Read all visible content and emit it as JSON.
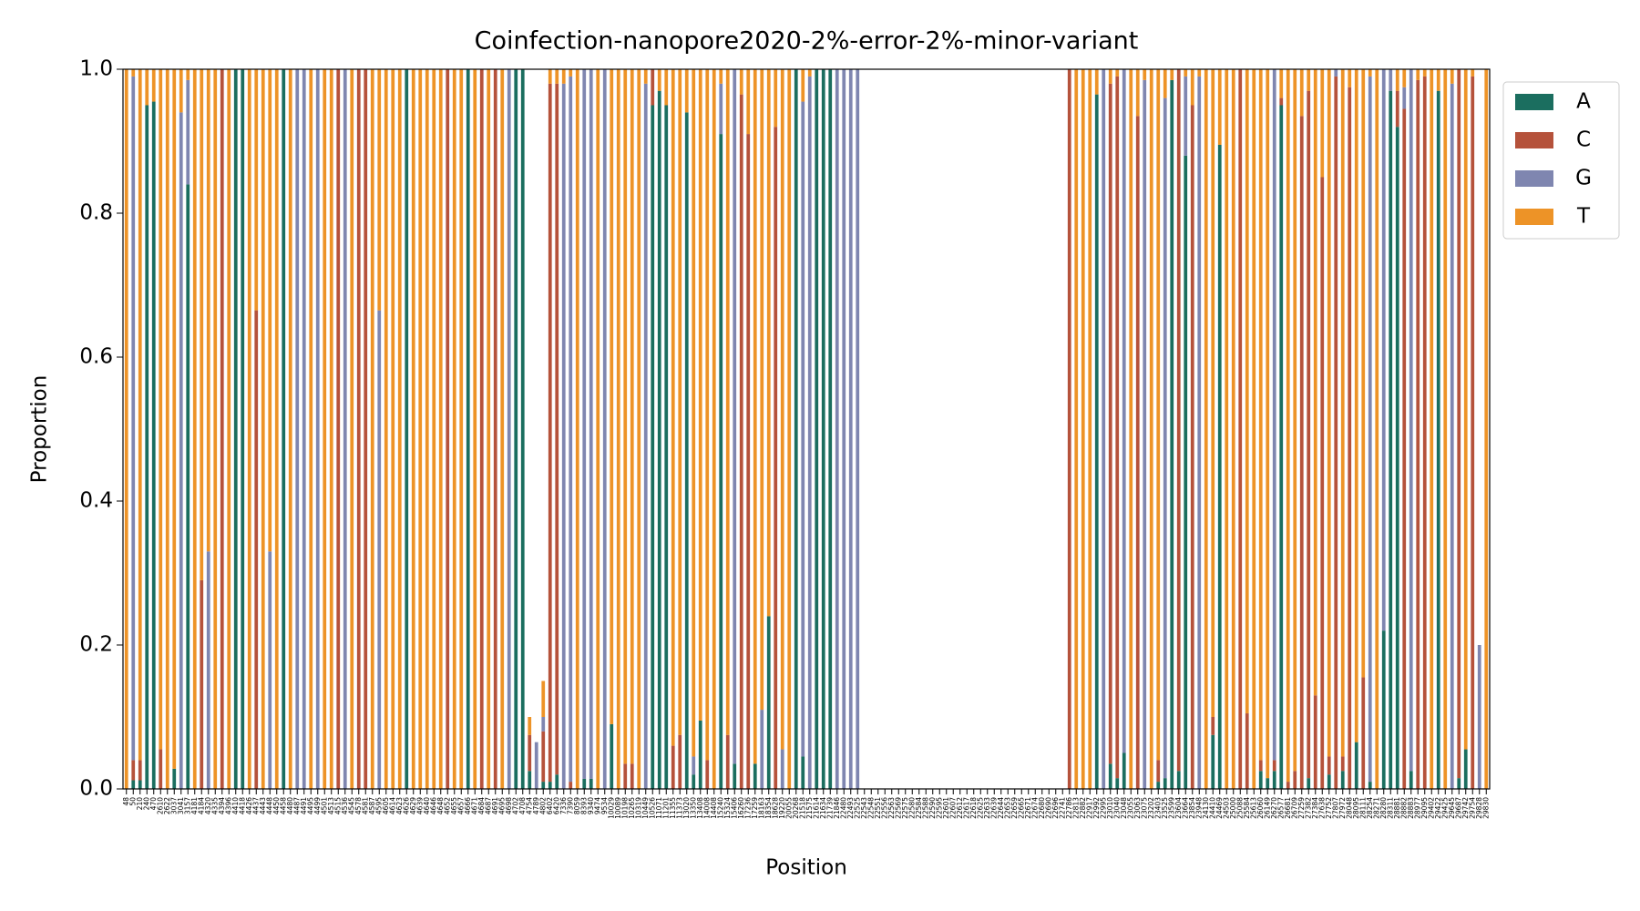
{
  "chart_data": {
    "type": "stacked_bar",
    "title": "Coinfection-nanopore2020-2%-error-2%-minor-variant",
    "x_label": "Position",
    "y_label": "Proportion",
    "ylim": [
      0,
      1
    ],
    "yticks": [
      {
        "value": 0,
        "label": "0.0"
      },
      0.2,
      0.4,
      0.6,
      0.8,
      {
        "value": 1,
        "label": "1.0"
      }
    ],
    "legend_position": "outside-upper-right",
    "categories": [
      "48",
      "50",
      "210",
      "240",
      "470",
      "2610",
      "2622",
      "3037",
      "3041",
      "3157",
      "4181",
      "4184",
      "4320",
      "4335",
      "4394",
      "4396",
      "4410",
      "4418",
      "4426",
      "4437",
      "4443",
      "4448",
      "4450",
      "4458",
      "4480",
      "4487",
      "4491",
      "4495",
      "4499",
      "4501",
      "4513",
      "4515",
      "4536",
      "4545",
      "4578",
      "4581",
      "4587",
      "4595",
      "4605",
      "4614",
      "4623",
      "4626",
      "4629",
      "4639",
      "4640",
      "4646",
      "4648",
      "4652",
      "4655",
      "4657",
      "4666",
      "4671",
      "4684",
      "4687",
      "4691",
      "4695",
      "4698",
      "4702",
      "4708",
      "4754",
      "4789",
      "4802",
      "6402",
      "6420",
      "7336",
      "7390",
      "8059",
      "8393",
      "9340",
      "9474",
      "9534",
      "10029",
      "10089",
      "10198",
      "10265",
      "10319",
      "10449",
      "10526",
      "11071",
      "11201",
      "11355",
      "11373",
      "13020",
      "13350",
      "13408",
      "14008",
      "14408",
      "15240",
      "15324",
      "15406",
      "16260",
      "17236",
      "17259",
      "18163",
      "18354",
      "18628",
      "19220",
      "20055",
      "20268",
      "21518",
      "21575",
      "21614",
      "21634",
      "21739",
      "21846",
      "22480",
      "22493",
      "22525",
      "22543",
      "22548",
      "22551",
      "22556",
      "22563",
      "22569",
      "22575",
      "22580",
      "22584",
      "22588",
      "22590",
      "22595",
      "22601",
      "22607",
      "22612",
      "22617",
      "22618",
      "22625",
      "22633",
      "22639",
      "22644",
      "22653",
      "22659",
      "22665",
      "22671",
      "22674",
      "22680",
      "22690",
      "22696",
      "22741",
      "22786",
      "22813",
      "22882",
      "22917",
      "22992",
      "22995",
      "23010",
      "23040",
      "23048",
      "23055",
      "23063",
      "23075",
      "23202",
      "23403",
      "23525",
      "23599",
      "23604",
      "23664",
      "23854",
      "23948",
      "24130",
      "24410",
      "24469",
      "24503",
      "25000",
      "25088",
      "25584",
      "25613",
      "26060",
      "26149",
      "26270",
      "26577",
      "26681",
      "26709",
      "27259",
      "27382",
      "27384",
      "27638",
      "27752",
      "27807",
      "27972",
      "28048",
      "28095",
      "28111",
      "28254",
      "28271",
      "28280",
      "28311",
      "28881",
      "28882",
      "28883",
      "28977",
      "29095",
      "29402",
      "29422",
      "29425",
      "29645",
      "29687",
      "29742",
      "29754",
      "29828",
      "29830"
    ],
    "series": [
      {
        "name": "A",
        "color": "#1b6e5f",
        "values": [
          0,
          0.012,
          0.012,
          0.95,
          0.955,
          0,
          0,
          0.028,
          0,
          0.84,
          0,
          0,
          0,
          0,
          0,
          0,
          1,
          1,
          0,
          0,
          0,
          0,
          0,
          1,
          0,
          0,
          0,
          0,
          0,
          0,
          0,
          0,
          0,
          0,
          0,
          0,
          0,
          0,
          0,
          0,
          0,
          1,
          0,
          0,
          0,
          0,
          0,
          0,
          0,
          0,
          1,
          0,
          0,
          0,
          0,
          0,
          0,
          1,
          1,
          0.025,
          0,
          0.01,
          0.01,
          0.02,
          0,
          0,
          0,
          0.014,
          0.014,
          0,
          0,
          0.09,
          0,
          0,
          0,
          0,
          0,
          0.95,
          0.97,
          0.95,
          0,
          0,
          0.94,
          0.02,
          0.095,
          0,
          0,
          0.91,
          0,
          0.035,
          0,
          0,
          0.035,
          0,
          0.24,
          0,
          0,
          0,
          1,
          0.045,
          0,
          1,
          1,
          1,
          0,
          0,
          0,
          0,
          0,
          0,
          0,
          0,
          0,
          0,
          0,
          0,
          0,
          0,
          0,
          0,
          0,
          0,
          0,
          0,
          0,
          0,
          0,
          0,
          0,
          0,
          0,
          0,
          0,
          0,
          0,
          0,
          0,
          0,
          0,
          0,
          0,
          0,
          0.965,
          0,
          0.035,
          0.015,
          0.05,
          0,
          0,
          0,
          0,
          0.01,
          0.015,
          0.985,
          0.025,
          0.88,
          0,
          0,
          0,
          0.075,
          0.895,
          0,
          0,
          0,
          0,
          0,
          0.025,
          0.015,
          0.025,
          0.95,
          0,
          0,
          0,
          0.015,
          0,
          0,
          0.02,
          0,
          0.025,
          0,
          0.065,
          0,
          0.01,
          0,
          0.22,
          0.97,
          0.92,
          0,
          0.025,
          0,
          0,
          0,
          0.97,
          0,
          0,
          0.015,
          0.055,
          0,
          0,
          0
        ]
      },
      {
        "name": "C",
        "color": "#b5523b",
        "values": [
          0,
          0.028,
          0.028,
          0,
          0,
          0.055,
          0,
          0,
          0,
          0,
          0,
          0.29,
          0,
          0,
          1,
          0,
          0,
          0,
          0,
          0.665,
          0,
          0,
          0,
          0,
          0,
          0,
          0,
          0,
          0,
          0,
          0,
          1,
          0,
          0,
          1,
          1,
          0,
          0,
          0,
          0,
          0,
          0,
          0,
          0,
          0,
          0,
          0,
          1,
          0,
          0,
          0,
          0,
          1,
          0,
          1,
          0,
          0,
          0,
          0,
          0.05,
          0,
          0.07,
          0.97,
          0.96,
          0,
          0.01,
          0,
          0,
          0,
          0,
          0,
          0,
          0,
          0.035,
          0.035,
          0,
          0,
          0.05,
          0,
          0,
          0.06,
          0.075,
          0,
          0,
          0,
          0.04,
          0,
          0,
          0.075,
          0,
          0.965,
          0.91,
          0,
          0,
          0,
          0.92,
          0,
          0,
          0,
          0,
          0,
          0,
          0,
          0,
          0,
          0,
          0,
          0,
          0,
          0,
          0,
          0,
          0,
          0,
          0,
          0,
          0,
          0,
          0,
          0,
          0,
          0,
          0,
          0,
          0,
          0,
          0,
          0,
          0,
          0,
          0,
          0,
          0,
          0,
          0,
          0,
          0,
          0,
          1,
          0,
          0,
          0,
          0,
          0,
          0.945,
          0.975,
          0,
          0,
          0.935,
          0,
          0,
          0.03,
          0,
          0,
          0.975,
          0,
          0.95,
          0,
          0,
          0.025,
          0,
          0,
          0,
          1,
          0.105,
          0,
          0.015,
          0,
          0.015,
          0.01,
          0.01,
          0.025,
          0.935,
          0.955,
          0.13,
          0.85,
          0.025,
          0.99,
          0.02,
          0.975,
          0,
          0.155,
          0,
          0,
          0,
          0,
          0.05,
          0.945,
          0,
          0.985,
          0.99,
          0,
          0,
          0,
          0,
          0.985,
          0,
          0.99,
          0,
          0
        ]
      },
      {
        "name": "G",
        "color": "#7f86b0",
        "values": [
          0,
          0.95,
          0,
          0,
          0,
          0,
          0,
          0,
          0.94,
          0.145,
          0,
          0,
          0.33,
          0,
          0,
          0,
          0,
          0,
          0,
          0,
          0,
          0.33,
          0,
          0,
          0,
          1,
          1,
          0,
          1,
          0,
          0,
          0,
          1,
          0,
          0,
          0,
          0,
          0.665,
          0,
          0,
          0,
          0,
          0,
          0,
          0,
          0,
          0,
          0,
          0,
          0,
          0,
          0,
          0,
          0,
          0,
          0,
          1,
          0,
          0,
          0,
          0.065,
          0.02,
          0,
          0,
          0.98,
          0.98,
          0,
          0.986,
          0.986,
          0,
          1,
          0,
          0,
          0,
          0,
          0,
          0.98,
          0,
          0,
          0,
          0,
          0,
          0,
          0.025,
          0,
          0,
          0,
          0.07,
          0,
          0.965,
          0,
          0,
          0,
          0.11,
          0,
          0,
          0.055,
          0,
          0,
          0.91,
          0.99,
          0,
          0,
          0,
          1,
          1,
          1,
          1,
          0,
          0,
          0,
          0,
          0,
          0,
          0,
          0,
          0,
          0,
          0,
          0,
          0,
          0,
          0,
          0,
          0,
          0,
          0,
          0,
          0,
          0,
          0,
          0,
          0,
          0,
          0,
          0,
          0,
          0,
          0,
          0,
          0,
          0,
          0,
          1,
          0,
          0,
          0.95,
          0,
          0,
          0.985,
          0,
          0,
          0.945,
          0,
          0,
          0.11,
          0,
          0.99,
          0,
          0,
          0,
          0,
          0,
          0,
          0,
          0,
          0,
          0,
          0.96,
          0,
          0,
          0,
          0,
          0,
          0,
          0,
          0,
          0.01,
          0,
          0,
          0,
          0,
          0.98,
          0,
          0.78,
          0.03,
          0,
          0.03,
          0.975,
          0,
          0,
          0,
          0,
          0,
          0.98,
          0,
          0,
          0,
          0.2,
          0
        ]
      },
      {
        "name": "T",
        "color": "#ed9327",
        "values": [
          1,
          0.01,
          0.96,
          0.05,
          0.045,
          0.945,
          1,
          0.972,
          0.06,
          0.015,
          1,
          0.71,
          0.67,
          1,
          0,
          1,
          0,
          0,
          1,
          0.335,
          1,
          0.67,
          1,
          0,
          1,
          0,
          0,
          1,
          0,
          1,
          1,
          0,
          0,
          1,
          0,
          0,
          1,
          0.335,
          1,
          1,
          1,
          0,
          1,
          1,
          1,
          1,
          1,
          0,
          1,
          1,
          0,
          1,
          0,
          1,
          0,
          1,
          0,
          0,
          0,
          0.025,
          0,
          0.05,
          0.02,
          0.02,
          0.02,
          0.01,
          1,
          0,
          0,
          1,
          0,
          0.91,
          1,
          0.965,
          0.965,
          1,
          0.02,
          0,
          0.03,
          0.05,
          0.94,
          0.925,
          0.06,
          0.955,
          0.905,
          0.96,
          1,
          0.02,
          0.925,
          0,
          0.035,
          0.09,
          0.965,
          0.89,
          0.76,
          0.08,
          0.945,
          1,
          0,
          0.045,
          0.01,
          0,
          0,
          0,
          0,
          0,
          0,
          0,
          0,
          0,
          0,
          0,
          0,
          0,
          0,
          0,
          0,
          0,
          0,
          0,
          0,
          0,
          0,
          0,
          0,
          0,
          0,
          0,
          0,
          0,
          0,
          0,
          0,
          0,
          0,
          0,
          0,
          0,
          0,
          1,
          1,
          1,
          0.035,
          0,
          0.02,
          0.01,
          0,
          1,
          0.065,
          0.015,
          1,
          0.96,
          0.04,
          0.015,
          0,
          0.01,
          0.05,
          0.01,
          1,
          0.9,
          0.105,
          1,
          1,
          0,
          0.895,
          1,
          0.96,
          0.985,
          0,
          0.04,
          0.99,
          0.975,
          0.065,
          0.03,
          0.87,
          0.15,
          0.955,
          0,
          0.955,
          0.025,
          0.935,
          0.845,
          0.01,
          1,
          0,
          0,
          0.03,
          0.025,
          0,
          0.015,
          0.01,
          1,
          0.03,
          1,
          0.02,
          0,
          0.945,
          0.01,
          0,
          1
        ]
      }
    ]
  }
}
